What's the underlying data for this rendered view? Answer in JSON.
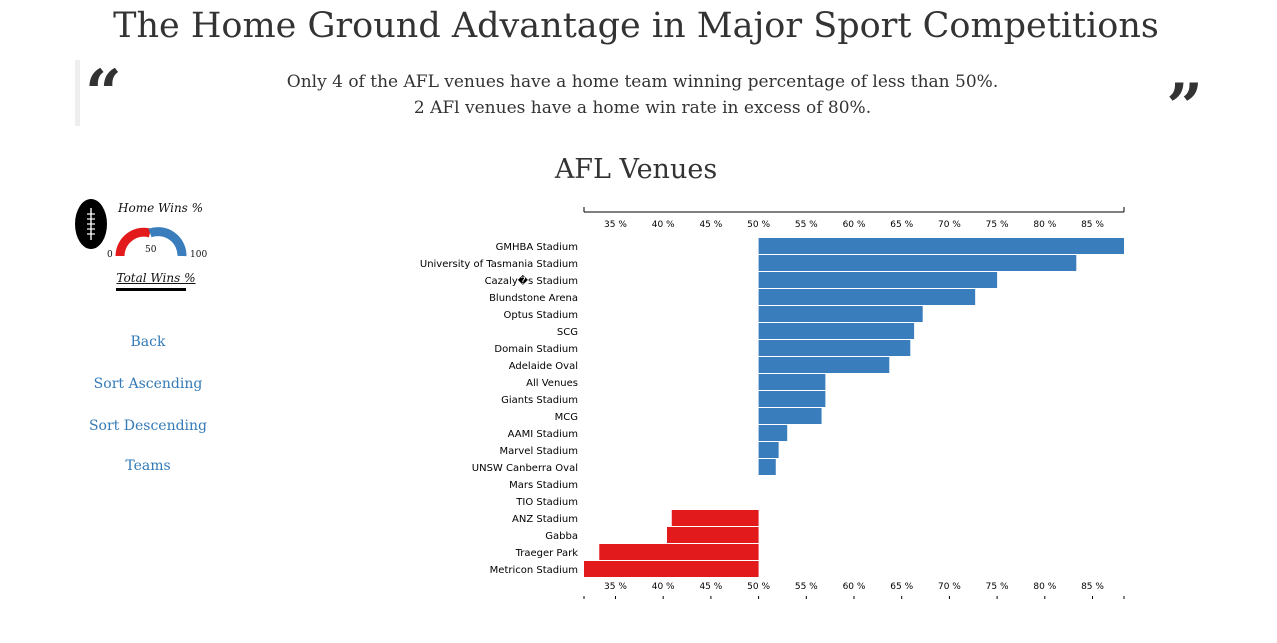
{
  "page": {
    "title": "The Home Ground Advantage in Major Sport Competitions"
  },
  "quote": {
    "open_mark": "“",
    "close_mark": "”",
    "line1": "Only 4 of the AFL venues have a home team winning percentage of less than 50%.",
    "line2": "2 AFl venues have a home win rate in excess of 80%."
  },
  "legend": {
    "home_wins_label": "Home Wins %",
    "total_wins_label": "Total Wins %",
    "tick_0": "0",
    "tick_50": "50",
    "tick_100": "100",
    "colors": {
      "low": "#e31a1c",
      "high": "#3a7dbd"
    }
  },
  "nav": {
    "back": "Back",
    "sort_ascending": "Sort Ascending",
    "sort_descending": "Sort Descending",
    "teams": "Teams"
  },
  "chart_data": {
    "type": "bar",
    "orientation": "horizontal",
    "title": "AFL Venues",
    "baseline": 50,
    "xlim": [
      31.7,
      88.3
    ],
    "x_ticks": [
      35,
      40,
      45,
      50,
      55,
      60,
      65,
      70,
      75,
      80,
      85
    ],
    "tick_suffix": " %",
    "axis_positions": [
      "top",
      "bottom"
    ],
    "colors": {
      "above": "#3a7dbd",
      "below": "#e31a1c"
    },
    "categories": [
      "GMHBA Stadium",
      "University of Tasmania Stadium",
      "Cazaly�s Stadium",
      "Blundstone Arena",
      "Optus Stadium",
      "SCG",
      "Domain Stadium",
      "Adelaide Oval",
      "All Venues",
      "Giants Stadium",
      "MCG",
      "AAMI Stadium",
      "Marvel Stadium",
      "UNSW Canberra Oval",
      "Mars Stadium",
      "TIO Stadium",
      "ANZ Stadium",
      "Gabba",
      "Traeger Park",
      "Metricon Stadium"
    ],
    "values": [
      88.3,
      83.3,
      75.0,
      72.7,
      67.2,
      66.3,
      65.9,
      63.7,
      57.0,
      57.0,
      56.6,
      53.0,
      52.1,
      51.8,
      50.0,
      50.0,
      40.9,
      40.4,
      33.3,
      31.7
    ]
  }
}
